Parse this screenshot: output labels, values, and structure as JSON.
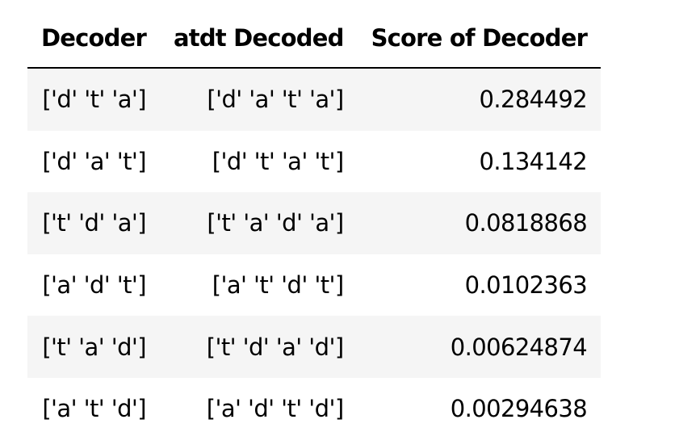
{
  "table": {
    "headers": [
      "Decoder",
      "atdt Decoded",
      "Score of Decoder"
    ],
    "rows": [
      [
        "['d' 't' 'a']",
        "['d' 'a' 't' 'a']",
        "0.284492"
      ],
      [
        "['d' 'a' 't']",
        "['d' 't' 'a' 't']",
        "0.134142"
      ],
      [
        "['t' 'd' 'a']",
        "['t' 'a' 'd' 'a']",
        "0.0818868"
      ],
      [
        "['a' 'd' 't']",
        "['a' 't' 'd' 't']",
        "0.0102363"
      ],
      [
        "['t' 'a' 'd']",
        "['t' 'd' 'a' 'd']",
        "0.00624874"
      ],
      [
        "['a' 't' 'd']",
        "['a' 'd' 't' 'd']",
        "0.00294638"
      ]
    ]
  }
}
